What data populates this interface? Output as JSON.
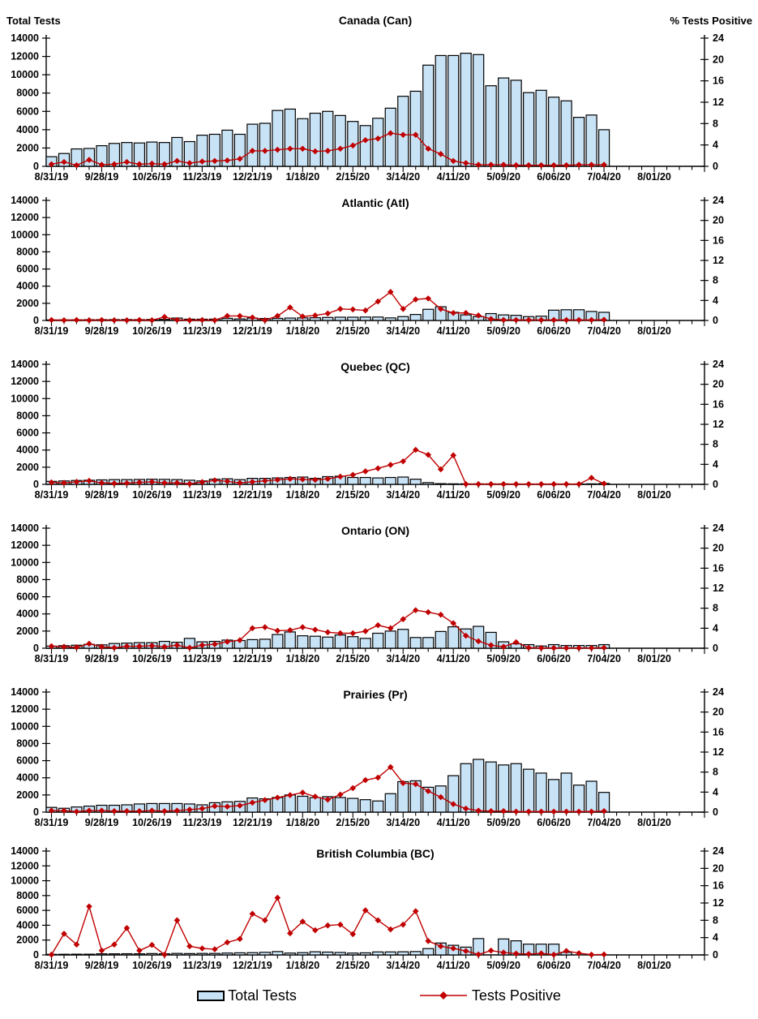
{
  "axes": {
    "left_title": "Total Tests",
    "right_title": "% Tests Positive",
    "left_ticks": [
      0,
      2000,
      4000,
      6000,
      8000,
      10000,
      12000,
      14000
    ],
    "right_ticks": [
      0,
      4,
      8,
      12,
      16,
      20,
      24
    ],
    "x_tick_labels": [
      "8/31/19",
      "9/28/19",
      "10/26/19",
      "11/23/19",
      "12/21/19",
      "1/18/20",
      "2/15/20",
      "3/14/20",
      "4/11/20",
      "5/09/20",
      "6/06/20",
      "7/04/20",
      "8/01/20"
    ]
  },
  "legend": {
    "total_tests": "Total Tests",
    "tests_positive": "Tests Positive"
  },
  "colors": {
    "bar_fill": "#C9E3F6",
    "bar_stroke": "#000000",
    "line": "#C00000",
    "text": "#000000"
  },
  "chart_data": {
    "type": "bar",
    "note_type": "combo bar+line, one panel per region; bars = Total Tests (left axis), line = % Tests Positive (right axis)",
    "x": [
      "8/31/19",
      "9/07/19",
      "9/14/19",
      "9/21/19",
      "9/28/19",
      "10/05/19",
      "10/12/19",
      "10/19/19",
      "10/26/19",
      "11/02/19",
      "11/09/19",
      "11/16/19",
      "11/23/19",
      "11/30/19",
      "12/07/19",
      "12/14/19",
      "12/21/19",
      "12/28/19",
      "1/04/20",
      "1/11/20",
      "1/18/20",
      "1/25/20",
      "2/01/20",
      "2/08/20",
      "2/15/20",
      "2/22/20",
      "2/29/20",
      "3/07/20",
      "3/14/20",
      "3/21/20",
      "3/28/20",
      "4/04/20",
      "4/11/20",
      "4/18/20",
      "4/25/20",
      "5/02/20",
      "5/09/20",
      "5/16/20",
      "5/23/20",
      "5/30/20",
      "6/06/20",
      "6/13/20",
      "6/20/20",
      "6/27/20",
      "7/04/20"
    ],
    "x_tick_labels": [
      "8/31/19",
      "9/28/19",
      "10/26/19",
      "11/23/19",
      "12/21/19",
      "1/18/20",
      "2/15/20",
      "3/14/20",
      "4/11/20",
      "5/09/20",
      "6/06/20",
      "7/04/20",
      "8/01/20"
    ],
    "left_axis": {
      "title": "Total Tests",
      "range": [
        0,
        14000
      ],
      "tick_step": 2000
    },
    "right_axis": {
      "title": "% Tests Positive",
      "range": [
        0,
        24
      ],
      "tick_step": 4
    },
    "legend_entries": [
      "Total Tests",
      "Tests Positive"
    ],
    "panels": [
      {
        "title": "Canada (Can)",
        "total_tests": [
          1050,
          1400,
          1900,
          1950,
          2250,
          2500,
          2600,
          2550,
          2650,
          2600,
          3150,
          2700,
          3400,
          3500,
          3950,
          3500,
          4600,
          4700,
          6100,
          6250,
          5200,
          5800,
          6000,
          5550,
          4900,
          4450,
          5250,
          6350,
          7650,
          8200,
          11050,
          12100,
          12100,
          12350,
          12200,
          8800,
          9650,
          9400,
          8050,
          8300,
          7550,
          7150,
          5350,
          5600,
          4000
        ],
        "pct_positive": [
          0.4,
          0.8,
          0.2,
          1.2,
          0.3,
          0.4,
          0.8,
          0.4,
          0.5,
          0.4,
          1.0,
          0.6,
          0.9,
          1.0,
          1.1,
          1.4,
          2.9,
          2.9,
          3.1,
          3.3,
          3.3,
          2.8,
          2.9,
          3.3,
          3.9,
          4.9,
          5.2,
          6.2,
          5.9,
          5.9,
          3.3,
          2.3,
          1.0,
          0.6,
          0.3,
          0.3,
          0.3,
          0.2,
          0.2,
          0.2,
          0.2,
          0.2,
          0.3,
          0.3,
          0.3
        ]
      },
      {
        "title": "Atlantic (Atl)",
        "total_tests": [
          60,
          70,
          80,
          90,
          100,
          100,
          110,
          100,
          120,
          130,
          280,
          150,
          150,
          160,
          250,
          180,
          280,
          230,
          250,
          280,
          300,
          320,
          350,
          380,
          380,
          400,
          400,
          300,
          450,
          700,
          1300,
          1600,
          950,
          650,
          450,
          800,
          650,
          600,
          450,
          500,
          1200,
          1250,
          1250,
          1050,
          950
        ],
        "pct_positive": [
          0.1,
          0.05,
          0.1,
          0.05,
          0.1,
          0.05,
          0.05,
          0.1,
          0.05,
          0.7,
          0.1,
          0.05,
          0.1,
          0.05,
          0.9,
          0.9,
          0.6,
          0.05,
          0.9,
          2.6,
          0.8,
          1.0,
          1.4,
          2.3,
          2.2,
          2.0,
          3.8,
          5.7,
          2.3,
          4.2,
          4.4,
          2.3,
          1.5,
          1.5,
          1.0,
          0.3,
          0.1,
          0.1,
          0.1,
          0.1,
          0.1,
          0.1,
          0.1,
          0.1,
          0.15
        ]
      },
      {
        "title": "Quebec (QC)",
        "total_tests": [
          350,
          400,
          450,
          480,
          520,
          550,
          550,
          570,
          600,
          580,
          550,
          480,
          400,
          600,
          650,
          550,
          700,
          700,
          750,
          800,
          850,
          700,
          900,
          950,
          800,
          800,
          750,
          800,
          850,
          600,
          200,
          80,
          60,
          60,
          60,
          60,
          60,
          50,
          50,
          50,
          50,
          50,
          50,
          60,
          100
        ],
        "pct_positive": [
          0.4,
          0.3,
          0.5,
          0.7,
          0.3,
          0.2,
          0.25,
          0.4,
          0.5,
          0.3,
          0.3,
          0.1,
          0.45,
          0.8,
          0.6,
          0.3,
          0.5,
          0.7,
          0.9,
          1.1,
          1.0,
          0.9,
          1.1,
          1.55,
          1.9,
          2.6,
          3.2,
          3.9,
          4.6,
          6.9,
          5.9,
          3.0,
          5.8,
          0.05,
          0.05,
          0.05,
          0.05,
          0.05,
          0.05,
          0.05,
          0.05,
          0.05,
          0.05,
          1.3,
          0.15
        ]
      },
      {
        "title": "Ontario (ON)",
        "total_tests": [
          250,
          300,
          350,
          450,
          400,
          550,
          600,
          650,
          650,
          800,
          700,
          1150,
          750,
          800,
          950,
          900,
          1000,
          1050,
          1600,
          1900,
          1450,
          1400,
          1300,
          1550,
          1350,
          1150,
          1750,
          2000,
          2200,
          1250,
          1250,
          1950,
          2500,
          2250,
          2550,
          1850,
          750,
          520,
          420,
          260,
          420,
          320,
          320,
          320,
          420
        ],
        "pct_positive": [
          0.4,
          0.3,
          0.2,
          0.9,
          0.3,
          0.1,
          0.4,
          0.4,
          0.5,
          0.3,
          0.6,
          0.1,
          0.6,
          0.8,
          1.3,
          1.6,
          4.0,
          4.2,
          3.5,
          3.6,
          4.2,
          3.7,
          3.2,
          3.0,
          3.0,
          3.4,
          4.6,
          4.0,
          5.8,
          7.6,
          7.2,
          6.7,
          5.0,
          2.5,
          1.4,
          0.6,
          0.3,
          1.2,
          0.1,
          0.05,
          0.05,
          0.05,
          0.05,
          0.05,
          0.1
        ]
      },
      {
        "title": "Prairies (Pr)",
        "total_tests": [
          550,
          450,
          600,
          700,
          800,
          800,
          850,
          950,
          1000,
          1000,
          1000,
          950,
          850,
          1100,
          1200,
          1250,
          1650,
          1550,
          1700,
          2000,
          1850,
          1700,
          1800,
          1700,
          1600,
          1450,
          1300,
          2150,
          3550,
          3650,
          2900,
          3050,
          4250,
          5650,
          6150,
          5850,
          5500,
          5650,
          5000,
          4550,
          3800,
          4550,
          3150,
          3600,
          2300
        ],
        "pct_positive": [
          0.3,
          0.3,
          0.1,
          0.3,
          0.3,
          0.2,
          0.2,
          0.2,
          0.3,
          0.2,
          0.3,
          0.5,
          0.7,
          1.2,
          1.1,
          1.3,
          1.9,
          2.4,
          2.9,
          3.4,
          3.9,
          3.1,
          2.5,
          3.5,
          4.8,
          6.4,
          6.9,
          9.0,
          5.8,
          5.6,
          4.2,
          3.0,
          1.6,
          0.7,
          0.3,
          0.2,
          0.2,
          0.1,
          0.1,
          0.1,
          0.1,
          0.1,
          0.1,
          0.1,
          0.2
        ]
      },
      {
        "title": "British Columbia (BC)",
        "total_tests": [
          80,
          90,
          100,
          100,
          150,
          150,
          160,
          150,
          180,
          150,
          200,
          180,
          200,
          200,
          250,
          280,
          300,
          350,
          450,
          250,
          300,
          420,
          380,
          330,
          250,
          280,
          400,
          400,
          420,
          450,
          850,
          1600,
          1300,
          1050,
          2200,
          0,
          2150,
          1900,
          1450,
          1450,
          1450,
          350,
          0,
          0,
          0
        ],
        "pct_positive": [
          0.05,
          4.9,
          2.4,
          11.2,
          1.0,
          2.4,
          6.2,
          1.0,
          2.3,
          0.05,
          8.0,
          2.0,
          1.5,
          1.3,
          2.9,
          3.7,
          9.5,
          8.0,
          13.2,
          5.0,
          7.7,
          5.7,
          6.8,
          7.0,
          4.8,
          10.3,
          8.0,
          5.9,
          7.0,
          10.1,
          3.2,
          2.0,
          1.5,
          0.9,
          0.1,
          1.0,
          0.55,
          0.3,
          0.2,
          0.35,
          0.05,
          0.9,
          0.4,
          0.05,
          0.1
        ]
      }
    ]
  }
}
